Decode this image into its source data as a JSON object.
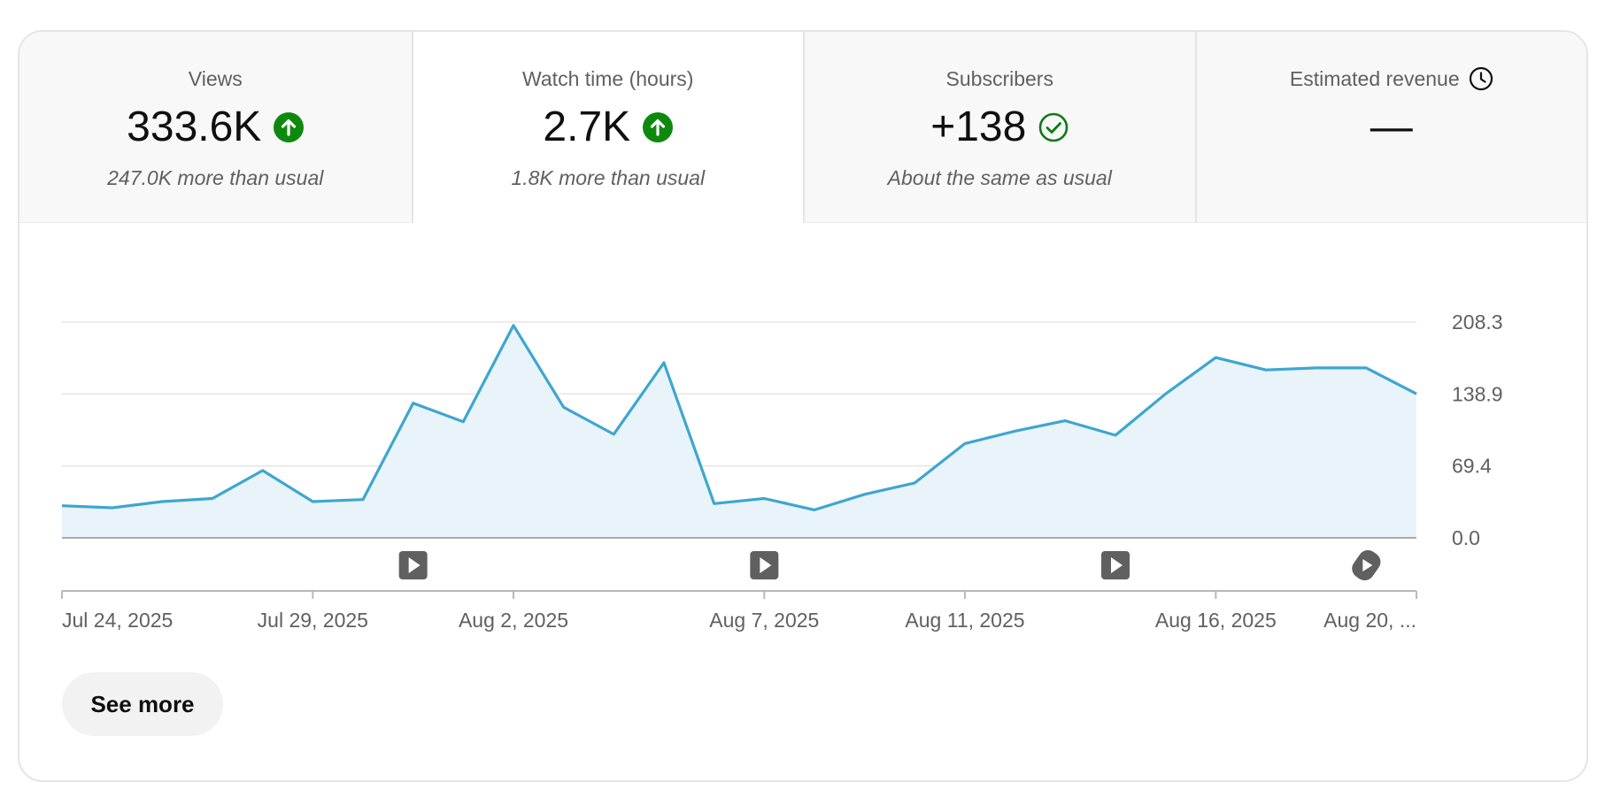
{
  "tabs": [
    {
      "title": "Views",
      "value": "333.6K",
      "subtitle": "247.0K more than usual",
      "status": "up",
      "active": false
    },
    {
      "title": "Watch time (hours)",
      "value": "2.7K",
      "subtitle": "1.8K more than usual",
      "status": "up",
      "active": true
    },
    {
      "title": "Subscribers",
      "value": "+138",
      "subtitle": "About the same as usual",
      "status": "same",
      "active": false
    },
    {
      "title": "Estimated revenue",
      "value": "—",
      "subtitle": "",
      "status": "pending",
      "active": false
    }
  ],
  "colors": {
    "line": "#3ea6d0",
    "fill": "#e9f4fa",
    "trend_up": "#0d8a0d",
    "check": "#0d7a16",
    "grid": "#e5e5e5",
    "axis": "#b8b8b8",
    "marker": "#606060"
  },
  "icons": {
    "trend_up": "arrow-up-circle-icon",
    "same": "check-circle-icon",
    "pending": "clock-icon",
    "video_marker": "play-square-icon",
    "shorts_marker": "shorts-icon"
  },
  "chart_data": {
    "type": "area",
    "series": [
      {
        "values": [
          31,
          29,
          35,
          38,
          65,
          35,
          37,
          130,
          112,
          205,
          126,
          100,
          169,
          33,
          38,
          27,
          42,
          53,
          91,
          103,
          113,
          99,
          139,
          174,
          162,
          164,
          164,
          139
        ]
      }
    ],
    "x": [
      "Jul 24, 2025",
      "Jul 25, 2025",
      "Jul 26, 2025",
      "Jul 27, 2025",
      "Jul 28, 2025",
      "Jul 29, 2025",
      "Jul 30, 2025",
      "Jul 31, 2025",
      "Aug 1, 2025",
      "Aug 2, 2025",
      "Aug 3, 2025",
      "Aug 4, 2025",
      "Aug 5, 2025",
      "Aug 6, 2025",
      "Aug 7, 2025",
      "Aug 8, 2025",
      "Aug 9, 2025",
      "Aug 10, 2025",
      "Aug 11, 2025",
      "Aug 12, 2025",
      "Aug 13, 2025",
      "Aug 14, 2025",
      "Aug 15, 2025",
      "Aug 16, 2025",
      "Aug 17, 2025",
      "Aug 18, 2025",
      "Aug 19, 2025",
      "Aug 20, 2025"
    ],
    "y_ticks": [
      "208.3",
      "138.9",
      "69.4",
      "0.0"
    ],
    "y_tick_values": [
      208.3,
      138.9,
      69.4,
      0.0
    ],
    "ylim": [
      0,
      208.3
    ],
    "x_tick_labels": [
      {
        "label": "Jul 24, 2025",
        "index": 0
      },
      {
        "label": "Jul 29, 2025",
        "index": 5
      },
      {
        "label": "Aug 2, 2025",
        "index": 9
      },
      {
        "label": "Aug 7, 2025",
        "index": 14
      },
      {
        "label": "Aug 11, 2025",
        "index": 18
      },
      {
        "label": "Aug 16, 2025",
        "index": 23
      },
      {
        "label": "Aug 20, ...",
        "index": 27
      }
    ],
    "video_markers": [
      {
        "type": "video",
        "index": 7
      },
      {
        "type": "video",
        "index": 14
      },
      {
        "type": "video",
        "index": 21
      },
      {
        "type": "short",
        "index": 26
      }
    ],
    "grid": true
  },
  "buttons": {
    "see_more": "See more"
  }
}
